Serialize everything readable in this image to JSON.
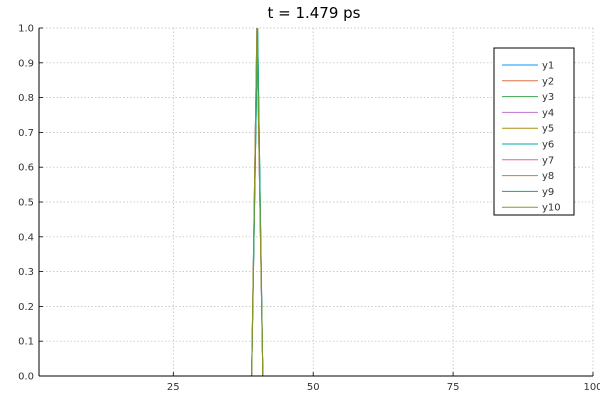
{
  "chart_data": {
    "type": "line",
    "title": "t = 1.479 ps",
    "xlabel": "",
    "ylabel": "",
    "xlim": [
      1,
      100
    ],
    "ylim": [
      0,
      1
    ],
    "x_ticks": [
      25,
      50,
      75,
      100
    ],
    "x_tick_labels": [
      "25",
      "50",
      "75",
      "100"
    ],
    "y_ticks": [
      0,
      0.1,
      0.2,
      0.3,
      0.4,
      0.5,
      0.6,
      0.7,
      0.8,
      0.9,
      1.0
    ],
    "y_tick_labels": [
      "0.0",
      "0.1",
      "0.2",
      "0.3",
      "0.4",
      "0.5",
      "0.6",
      "0.7",
      "0.8",
      "0.9",
      "1.0"
    ],
    "grid": true,
    "legend_position": "top-right",
    "x": [
      1,
      38,
      39,
      40,
      41,
      42,
      100
    ],
    "series": [
      {
        "name": "y1",
        "color": "#009AFA",
        "values": [
          0,
          0,
          0,
          1,
          0,
          0,
          0
        ]
      },
      {
        "name": "y2",
        "color": "#E36F47",
        "values": [
          0,
          0,
          0,
          1,
          0,
          0,
          0
        ]
      },
      {
        "name": "y3",
        "color": "#3EA44E",
        "values": [
          0,
          0,
          0,
          1,
          0,
          0,
          0
        ]
      },
      {
        "name": "y4",
        "color": "#C371D2",
        "values": [
          0,
          0,
          0,
          1,
          0,
          0,
          0
        ]
      },
      {
        "name": "y5",
        "color": "#AC8E18",
        "values": [
          0,
          0,
          0,
          1,
          0,
          0,
          0
        ]
      },
      {
        "name": "y6",
        "color": "#00AAAE",
        "values": [
          0,
          0,
          0,
          1,
          0,
          0,
          0
        ]
      },
      {
        "name": "y7",
        "color": "#ED5E93",
        "values": [
          0,
          0,
          0,
          1,
          0,
          0,
          0
        ]
      },
      {
        "name": "y8",
        "color": "#C68225",
        "values": [
          0,
          0,
          0,
          1,
          0,
          0,
          0
        ]
      },
      {
        "name": "y9",
        "color": "#00A98D",
        "values": [
          0,
          0,
          0,
          1,
          0,
          0,
          0
        ]
      },
      {
        "name": "y10",
        "color": "#8E971D",
        "values": [
          0,
          0,
          0,
          1,
          0,
          0,
          0
        ]
      }
    ]
  }
}
